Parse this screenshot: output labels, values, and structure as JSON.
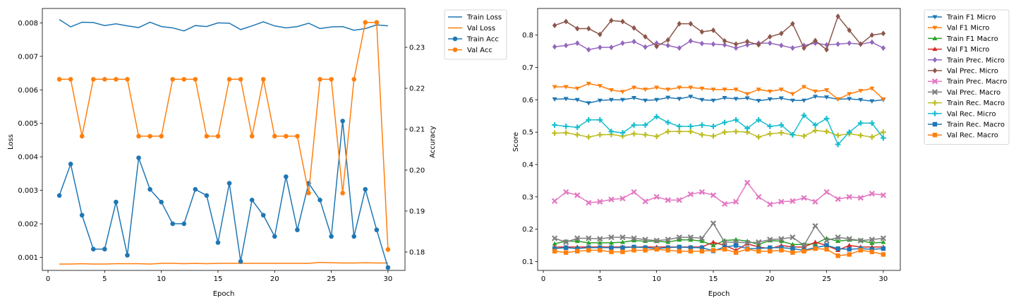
{
  "chart_data": [
    {
      "type": "line",
      "xlabel": "Epoch",
      "ylabel_left": "Loss",
      "ylabel_right": "Accuracy",
      "x": [
        1,
        2,
        3,
        4,
        5,
        6,
        7,
        8,
        9,
        10,
        11,
        12,
        13,
        14,
        15,
        16,
        17,
        18,
        19,
        20,
        21,
        22,
        23,
        24,
        25,
        26,
        27,
        28,
        29,
        30
      ],
      "xticks": [
        0,
        5,
        10,
        15,
        20,
        25,
        30
      ],
      "xlim": [
        -0.5,
        31.5
      ],
      "ylim_left": [
        0.00061,
        0.00843
      ],
      "yticks_left": [
        0.001,
        0.002,
        0.003,
        0.004,
        0.005,
        0.006,
        0.007,
        0.008
      ],
      "ylim_right": [
        0.1755,
        0.2395
      ],
      "yticks_right": [
        0.18,
        0.19,
        0.2,
        0.21,
        0.22,
        0.23
      ],
      "legend_position": "outside-right-top",
      "series": [
        {
          "name": "Train Loss",
          "axis": "left",
          "color": "#1f77b4",
          "marker": "none",
          "values": [
            0.0081,
            0.00788,
            0.00802,
            0.00801,
            0.00792,
            0.00797,
            0.00791,
            0.00786,
            0.00802,
            0.00789,
            0.00785,
            0.00776,
            0.00792,
            0.00789,
            0.008,
            0.00799,
            0.0078,
            0.00791,
            0.00803,
            0.00791,
            0.00785,
            0.00789,
            0.00799,
            0.00783,
            0.00788,
            0.00789,
            0.00778,
            0.00783,
            0.00794,
            0.00791
          ]
        },
        {
          "name": "Val Loss",
          "axis": "left",
          "color": "#ff7f0e",
          "marker": "none",
          "values": [
            0.0008,
            0.0008,
            0.00081,
            0.0008,
            0.0008,
            0.00081,
            0.00081,
            0.00081,
            0.0008,
            0.00082,
            0.00082,
            0.00081,
            0.00082,
            0.00081,
            0.00082,
            0.00082,
            0.00082,
            0.00082,
            0.00082,
            0.00082,
            0.00082,
            0.00082,
            0.00082,
            0.00085,
            0.00084,
            0.00083,
            0.00083,
            0.00084,
            0.00083,
            0.00083
          ]
        },
        {
          "name": "Train Acc",
          "axis": "right",
          "color": "#1f77b4",
          "marker": "circle",
          "values": [
            0.1938,
            0.2015,
            0.189,
            0.1807,
            0.1807,
            0.1922,
            0.1792,
            0.203,
            0.1953,
            0.1922,
            0.1869,
            0.1869,
            0.1953,
            0.1938,
            0.1823,
            0.1968,
            0.1777,
            0.1927,
            0.189,
            0.1838,
            0.1984,
            0.1854,
            0.1968,
            0.1927,
            0.1838,
            0.212,
            0.1838,
            0.1953,
            0.1854,
            0.1762
          ]
        },
        {
          "name": "Val Acc",
          "axis": "right",
          "color": "#ff7f0e",
          "marker": "circle",
          "values": [
            0.2222,
            0.2222,
            0.2083,
            0.2222,
            0.2222,
            0.2222,
            0.2222,
            0.2083,
            0.2083,
            0.2083,
            0.2222,
            0.2222,
            0.2222,
            0.2083,
            0.2083,
            0.2222,
            0.2222,
            0.2083,
            0.2222,
            0.2083,
            0.2083,
            0.2083,
            0.1944,
            0.2222,
            0.2222,
            0.1944,
            0.2222,
            0.2361,
            0.2361,
            0.1806
          ]
        }
      ]
    },
    {
      "type": "line",
      "xlabel": "Epoch",
      "ylabel": "Score",
      "x": [
        1,
        2,
        3,
        4,
        5,
        6,
        7,
        8,
        9,
        10,
        11,
        12,
        13,
        14,
        15,
        16,
        17,
        18,
        19,
        20,
        21,
        22,
        23,
        24,
        25,
        26,
        27,
        28,
        29,
        30
      ],
      "xticks": [
        0,
        5,
        10,
        15,
        20,
        25,
        30
      ],
      "xlim": [
        -0.5,
        31.5
      ],
      "ylim": [
        0.0727,
        0.8823
      ],
      "yticks": [
        0.1,
        0.2,
        0.3,
        0.4,
        0.5,
        0.6,
        0.7,
        0.8
      ],
      "legend_position": "outside-right-top",
      "series": [
        {
          "name": "Train F1 Micro",
          "color": "#1f77b4",
          "marker": "tri-down",
          "values": [
            0.602,
            0.603,
            0.6,
            0.59,
            0.598,
            0.6,
            0.6,
            0.606,
            0.598,
            0.6,
            0.607,
            0.603,
            0.61,
            0.6,
            0.598,
            0.606,
            0.603,
            0.605,
            0.597,
            0.602,
            0.605,
            0.598,
            0.598,
            0.61,
            0.608,
            0.602,
            0.603,
            0.6,
            0.596,
            0.6
          ]
        },
        {
          "name": "Val F1 Micro",
          "color": "#ff7f0e",
          "marker": "tri-down",
          "values": [
            0.64,
            0.64,
            0.635,
            0.65,
            0.643,
            0.63,
            0.625,
            0.638,
            0.632,
            0.638,
            0.632,
            0.638,
            0.638,
            0.635,
            0.632,
            0.632,
            0.632,
            0.618,
            0.632,
            0.626,
            0.632,
            0.618,
            0.64,
            0.626,
            0.63,
            0.602,
            0.618,
            0.628,
            0.635,
            0.602
          ]
        },
        {
          "name": "Train F1 Macro",
          "color": "#2ca02c",
          "marker": "tri-up",
          "values": [
            0.155,
            0.163,
            0.163,
            0.158,
            0.158,
            0.158,
            0.16,
            0.165,
            0.163,
            0.163,
            0.16,
            0.167,
            0.167,
            0.163,
            0.15,
            0.165,
            0.168,
            0.163,
            0.153,
            0.165,
            0.163,
            0.153,
            0.153,
            0.155,
            0.172,
            0.163,
            0.167,
            0.165,
            0.157,
            0.16
          ]
        },
        {
          "name": "Val F1 Micro",
          "color": "#d62728",
          "marker": "tri-up",
          "values": [
            0.145,
            0.145,
            0.145,
            0.145,
            0.145,
            0.145,
            0.145,
            0.145,
            0.145,
            0.145,
            0.145,
            0.145,
            0.145,
            0.145,
            0.16,
            0.15,
            0.135,
            0.155,
            0.145,
            0.14,
            0.15,
            0.145,
            0.145,
            0.16,
            0.15,
            0.135,
            0.15,
            0.145,
            0.145,
            0.145
          ]
        },
        {
          "name": "Train Prec. Micro",
          "color": "#9467bd",
          "marker": "diamond",
          "values": [
            0.764,
            0.768,
            0.775,
            0.755,
            0.762,
            0.762,
            0.775,
            0.78,
            0.763,
            0.775,
            0.768,
            0.76,
            0.782,
            0.774,
            0.772,
            0.77,
            0.76,
            0.77,
            0.775,
            0.775,
            0.768,
            0.76,
            0.768,
            0.775,
            0.77,
            0.772,
            0.775,
            0.772,
            0.778,
            0.76
          ]
        },
        {
          "name": "Val Prec. Micro",
          "color": "#8c564b",
          "marker": "diamond",
          "values": [
            0.83,
            0.842,
            0.82,
            0.82,
            0.802,
            0.845,
            0.842,
            0.822,
            0.795,
            0.765,
            0.785,
            0.835,
            0.835,
            0.81,
            0.815,
            0.782,
            0.772,
            0.78,
            0.77,
            0.795,
            0.805,
            0.835,
            0.76,
            0.783,
            0.755,
            0.858,
            0.815,
            0.772,
            0.8,
            0.805
          ]
        },
        {
          "name": "Train Prec. Macro",
          "color": "#e377c2",
          "marker": "x",
          "values": [
            0.287,
            0.315,
            0.305,
            0.282,
            0.285,
            0.292,
            0.295,
            0.315,
            0.286,
            0.3,
            0.29,
            0.29,
            0.308,
            0.315,
            0.305,
            0.278,
            0.285,
            0.344,
            0.3,
            0.277,
            0.285,
            0.287,
            0.297,
            0.285,
            0.315,
            0.293,
            0.3,
            0.297,
            0.31,
            0.305
          ]
        },
        {
          "name": "Val Prec. Macro",
          "color": "#7f7f7f",
          "marker": "x",
          "values": [
            0.172,
            0.16,
            0.172,
            0.172,
            0.17,
            0.175,
            0.175,
            0.172,
            0.168,
            0.165,
            0.168,
            0.175,
            0.175,
            0.172,
            0.218,
            0.16,
            0.16,
            0.158,
            0.16,
            0.168,
            0.17,
            0.175,
            0.15,
            0.21,
            0.165,
            0.175,
            0.17,
            0.165,
            0.168,
            0.172
          ]
        },
        {
          "name": "Train Rec. Macro",
          "color": "#bcbd22",
          "marker": "plus",
          "values": [
            0.497,
            0.498,
            0.492,
            0.485,
            0.492,
            0.493,
            0.488,
            0.495,
            0.492,
            0.487,
            0.502,
            0.502,
            0.502,
            0.492,
            0.488,
            0.5,
            0.502,
            0.5,
            0.485,
            0.495,
            0.498,
            0.492,
            0.488,
            0.505,
            0.502,
            0.49,
            0.495,
            0.49,
            0.485,
            0.5
          ]
        },
        {
          "name": "Val Rec. Micro",
          "color": "#17becf",
          "marker": "plus",
          "values": [
            0.522,
            0.518,
            0.515,
            0.538,
            0.538,
            0.502,
            0.498,
            0.522,
            0.522,
            0.548,
            0.53,
            0.518,
            0.518,
            0.522,
            0.518,
            0.53,
            0.538,
            0.512,
            0.538,
            0.518,
            0.522,
            0.492,
            0.552,
            0.522,
            0.542,
            0.462,
            0.5,
            0.528,
            0.528,
            0.482
          ]
        },
        {
          "name": "Train Rec. Macro",
          "color": "#1f77b4",
          "marker": "square",
          "values": [
            0.14,
            0.143,
            0.14,
            0.143,
            0.143,
            0.143,
            0.143,
            0.145,
            0.143,
            0.14,
            0.143,
            0.145,
            0.143,
            0.143,
            0.133,
            0.145,
            0.15,
            0.14,
            0.14,
            0.143,
            0.143,
            0.14,
            0.135,
            0.143,
            0.15,
            0.14,
            0.138,
            0.14,
            0.138,
            0.14
          ]
        },
        {
          "name": "Val Rec. Macro",
          "color": "#ff7f0e",
          "marker": "square",
          "values": [
            0.132,
            0.128,
            0.132,
            0.135,
            0.135,
            0.13,
            0.13,
            0.135,
            0.135,
            0.138,
            0.135,
            0.132,
            0.132,
            0.132,
            0.135,
            0.138,
            0.128,
            0.138,
            0.132,
            0.132,
            0.135,
            0.128,
            0.132,
            0.14,
            0.138,
            0.118,
            0.122,
            0.135,
            0.13,
            0.122
          ]
        }
      ]
    }
  ]
}
